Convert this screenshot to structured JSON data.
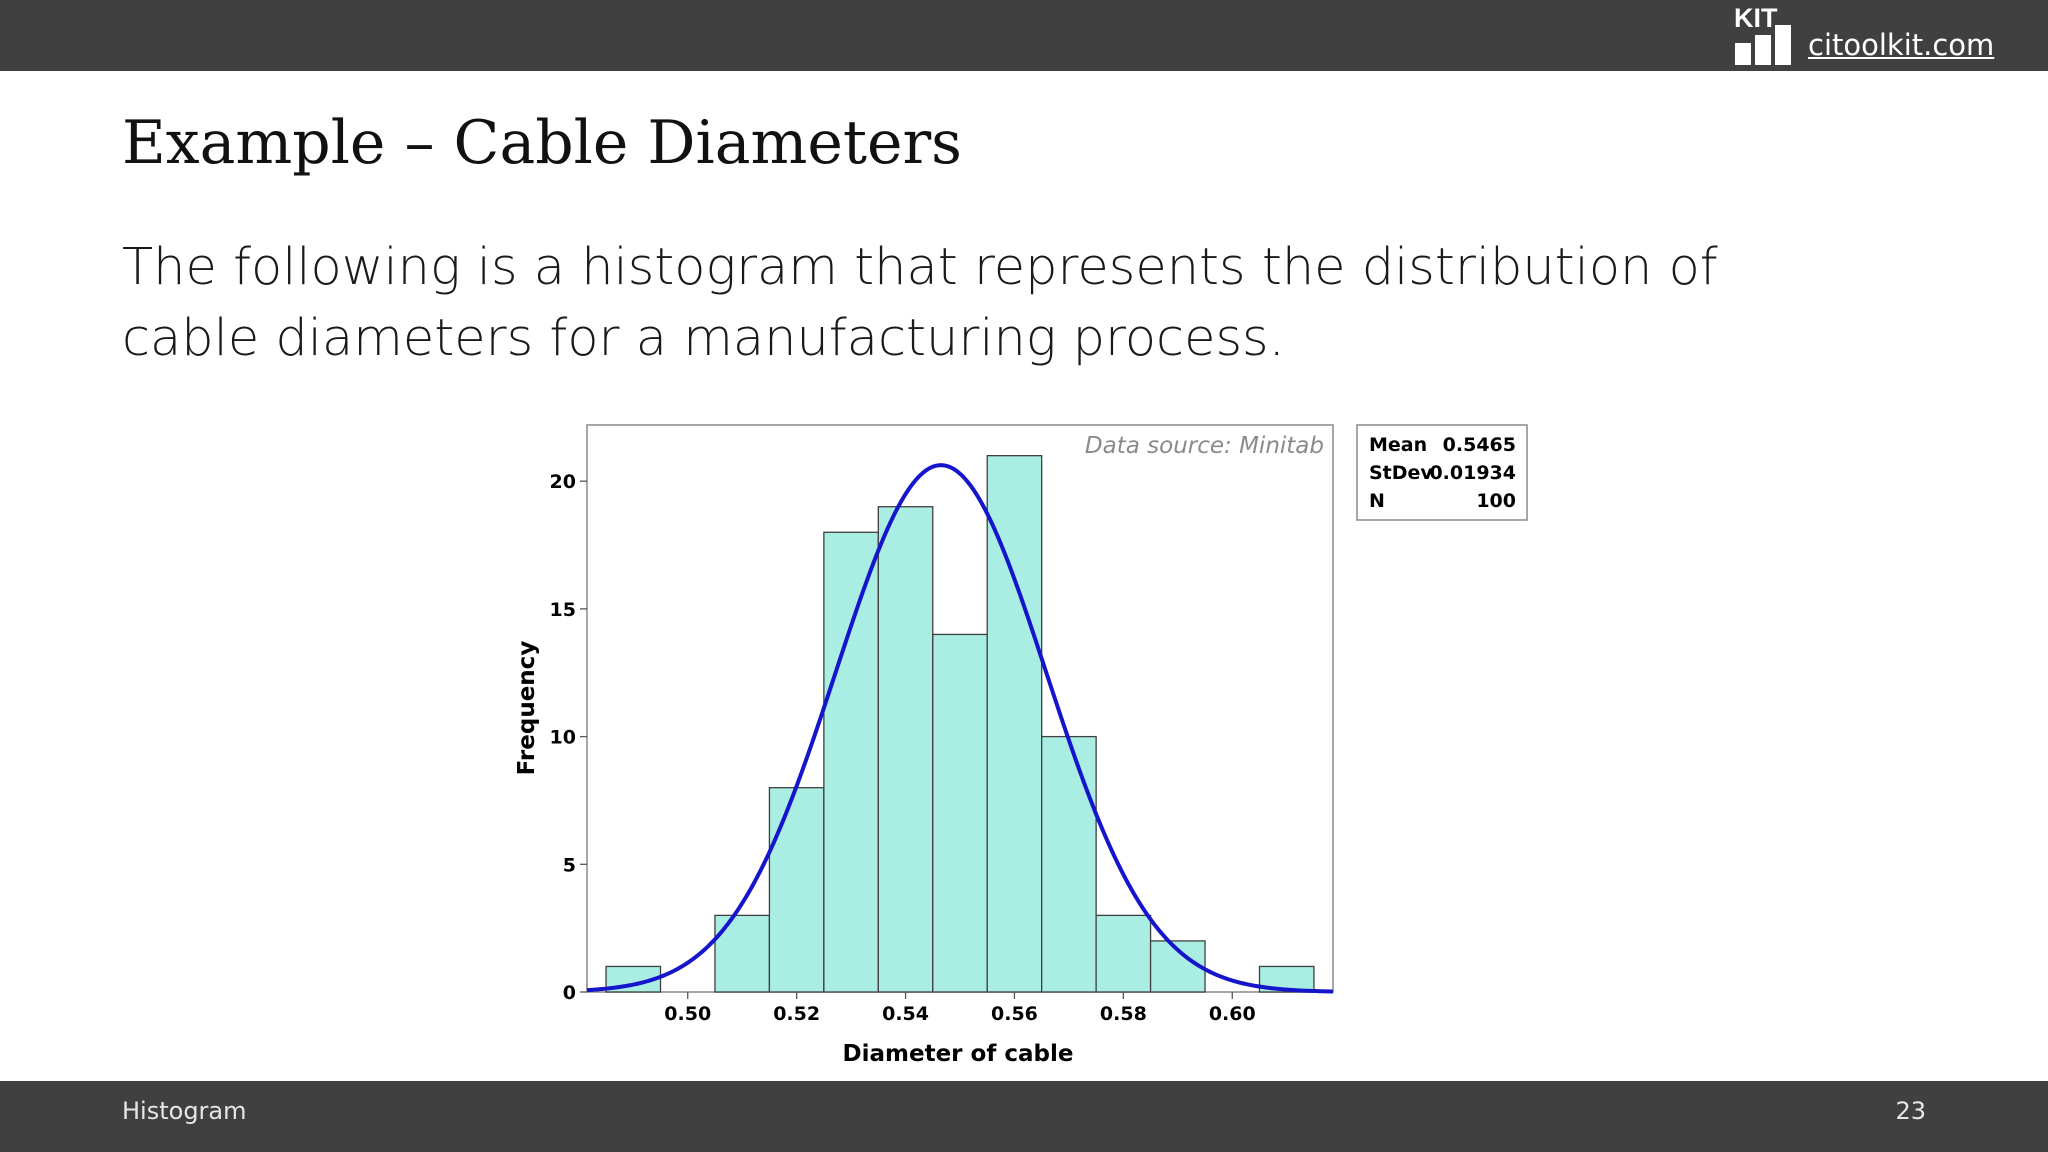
{
  "header": {
    "brand": "KIT",
    "site": "citoolkit.com"
  },
  "slide": {
    "title": "Example – Cable Diameters",
    "text": "The following is a histogram that represents the distribution of cable diameters for a manufacturing process."
  },
  "footer": {
    "section": "Histogram",
    "page": "23"
  },
  "chart_data": {
    "type": "bar",
    "subtype": "histogram",
    "bin_width": 0.01,
    "bins": [
      {
        "start": 0.485,
        "end": 0.495,
        "count": 1
      },
      {
        "start": 0.495,
        "end": 0.505,
        "count": 0
      },
      {
        "start": 0.505,
        "end": 0.515,
        "count": 3
      },
      {
        "start": 0.515,
        "end": 0.525,
        "count": 8
      },
      {
        "start": 0.525,
        "end": 0.535,
        "count": 18
      },
      {
        "start": 0.535,
        "end": 0.545,
        "count": 19
      },
      {
        "start": 0.545,
        "end": 0.555,
        "count": 14
      },
      {
        "start": 0.555,
        "end": 0.565,
        "count": 21
      },
      {
        "start": 0.565,
        "end": 0.575,
        "count": 10
      },
      {
        "start": 0.575,
        "end": 0.585,
        "count": 3
      },
      {
        "start": 0.585,
        "end": 0.595,
        "count": 2
      },
      {
        "start": 0.595,
        "end": 0.605,
        "count": 0
      },
      {
        "start": 0.605,
        "end": 0.615,
        "count": 1
      }
    ],
    "fit": {
      "type": "normal",
      "mean": 0.5465,
      "stdev": 0.01934,
      "n": 100
    },
    "xlabel": "Diameter of cable",
    "ylabel": "Frequency",
    "xlim": [
      0.4815,
      0.6185
    ],
    "ylim": [
      0,
      22.2
    ],
    "xticks": [
      {
        "value": 0.5,
        "label": "0.50"
      },
      {
        "value": 0.52,
        "label": "0.52"
      },
      {
        "value": 0.54,
        "label": "0.54"
      },
      {
        "value": 0.56,
        "label": "0.56"
      },
      {
        "value": 0.58,
        "label": "0.58"
      },
      {
        "value": 0.6,
        "label": "0.60"
      }
    ],
    "yticks": [
      {
        "value": 0,
        "label": "0"
      },
      {
        "value": 5,
        "label": "5"
      },
      {
        "value": 10,
        "label": "10"
      },
      {
        "value": 15,
        "label": "15"
      },
      {
        "value": 20,
        "label": "20"
      }
    ],
    "annotation": "Data source: Minitab",
    "stats": [
      {
        "label": "Mean",
        "value": "0.5465"
      },
      {
        "label": "StDev",
        "value": "0.01934"
      },
      {
        "label": "N",
        "value": "100"
      }
    ],
    "grid": false,
    "bar_color": "#aaeee3",
    "bar_edge_color": "#3f3f3f",
    "curve_color": "#1515cc"
  }
}
